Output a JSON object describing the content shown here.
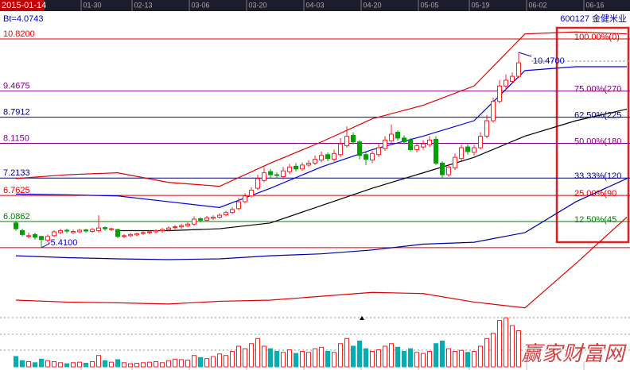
{
  "chart_data": {
    "type": "candlestick",
    "indicator_label": "Bt=4.0743",
    "stock": "600127 金健米业",
    "watermark": "赢家财富网",
    "categories": [
      "2015-01-14",
      null,
      null,
      null,
      null,
      null,
      null,
      null,
      null,
      null,
      null,
      null,
      "01-30",
      null,
      null,
      null,
      null,
      null,
      null,
      null,
      "02-13",
      null,
      null,
      null,
      null,
      null,
      null,
      null,
      null,
      "03-06",
      null,
      null,
      null,
      null,
      null,
      null,
      null,
      null,
      "03-20",
      null,
      null,
      null,
      null,
      null,
      null,
      null,
      null,
      "04-03",
      null,
      null,
      null,
      null,
      null,
      null,
      null,
      null,
      "04-20",
      null,
      null,
      null,
      null,
      null,
      null,
      null,
      null,
      "05-05",
      null,
      null,
      null,
      null,
      null,
      null,
      null,
      "05-19",
      null,
      null,
      null,
      null,
      null,
      null,
      null,
      null,
      "06-02",
      null,
      null,
      null,
      null,
      null,
      null,
      null,
      null,
      "06-16",
      null,
      null,
      null,
      null,
      null
    ],
    "open": [
      6.05,
      5.85,
      5.7,
      5.75,
      5.7,
      5.6,
      5.72,
      5.8,
      5.86,
      5.8,
      5.82,
      5.87,
      5.83,
      5.85,
      5.93,
      5.88,
      5.88,
      5.7,
      5.72,
      5.74,
      5.78,
      5.8,
      5.82,
      5.85,
      5.88,
      5.93,
      5.95,
      5.98,
      6.02,
      6.16,
      6.12,
      6.17,
      6.2,
      6.26,
      6.32,
      6.42,
      6.6,
      6.75,
      6.95,
      7.15,
      7.38,
      7.3,
      7.25,
      7.38,
      7.52,
      7.45,
      7.55,
      7.6,
      7.68,
      7.82,
      7.7,
      7.82,
      8.05,
      8.32,
      8.15,
      7.82,
      7.68,
      7.82,
      7.98,
      8.18,
      8.4,
      8.25,
      8.2,
      7.95,
      8.02,
      8.08,
      8.22,
      7.6,
      7.3,
      7.48,
      7.72,
      8.02,
      7.88,
      8.0,
      8.3,
      8.7,
      9.2,
      9.6,
      9.72,
      9.85,
      null,
      null,
      null,
      null,
      null,
      null,
      null,
      null,
      null,
      null,
      null,
      null,
      null,
      null,
      null,
      null,
      null
    ],
    "high": [
      6.1,
      5.9,
      5.8,
      5.8,
      5.72,
      5.75,
      5.86,
      5.9,
      5.9,
      5.88,
      5.9,
      5.9,
      5.92,
      6.25,
      5.96,
      5.93,
      5.9,
      5.76,
      5.79,
      5.8,
      5.83,
      5.86,
      5.88,
      5.92,
      5.96,
      6.0,
      6.03,
      6.07,
      6.22,
      6.2,
      6.23,
      6.25,
      6.3,
      6.37,
      6.46,
      6.7,
      6.82,
      6.98,
      7.3,
      7.5,
      7.45,
      7.36,
      7.5,
      7.58,
      7.6,
      7.62,
      7.68,
      7.8,
      7.9,
      7.88,
      7.95,
      8.25,
      8.55,
      8.4,
      8.2,
      7.88,
      7.92,
      8.1,
      8.3,
      8.6,
      8.45,
      8.32,
      8.25,
      8.12,
      8.2,
      8.3,
      8.3,
      7.65,
      7.58,
      7.85,
      8.08,
      8.1,
      8.08,
      8.4,
      8.85,
      9.3,
      9.75,
      9.9,
      9.95,
      10.47,
      null,
      null,
      null,
      null,
      null,
      null,
      null,
      null,
      null,
      null,
      null,
      null,
      null,
      null,
      null,
      null,
      null
    ],
    "low": [
      5.85,
      5.7,
      5.65,
      5.62,
      5.41,
      5.55,
      5.68,
      5.76,
      5.78,
      5.76,
      5.78,
      5.8,
      5.79,
      5.8,
      5.85,
      5.84,
      5.66,
      5.66,
      5.68,
      5.7,
      5.74,
      5.76,
      5.78,
      5.8,
      5.84,
      5.88,
      5.9,
      5.94,
      5.98,
      6.06,
      6.08,
      6.12,
      6.16,
      6.22,
      6.28,
      6.38,
      6.55,
      6.7,
      6.9,
      7.1,
      7.22,
      7.2,
      7.18,
      7.32,
      7.38,
      7.4,
      7.5,
      7.55,
      7.62,
      7.65,
      7.64,
      7.76,
      8.0,
      8.08,
      7.7,
      7.55,
      7.6,
      7.76,
      7.92,
      8.12,
      8.18,
      8.08,
      7.9,
      7.88,
      7.95,
      8.02,
      7.55,
      7.2,
      7.25,
      7.42,
      7.66,
      7.82,
      7.8,
      7.95,
      8.25,
      8.65,
      9.15,
      9.5,
      9.68,
      9.8,
      null,
      null,
      null,
      null,
      null,
      null,
      null,
      null,
      null,
      null,
      null,
      null,
      null,
      null,
      null,
      null,
      null
    ],
    "close": [
      5.9,
      5.75,
      5.72,
      5.68,
      5.62,
      5.7,
      5.82,
      5.85,
      5.84,
      5.83,
      5.86,
      5.84,
      5.88,
      5.92,
      5.9,
      5.9,
      5.7,
      5.72,
      5.75,
      5.77,
      5.8,
      5.82,
      5.85,
      5.88,
      5.92,
      5.95,
      5.98,
      6.02,
      6.15,
      6.12,
      6.18,
      6.2,
      6.25,
      6.32,
      6.4,
      6.6,
      6.75,
      6.9,
      7.2,
      7.35,
      7.3,
      7.28,
      7.4,
      7.5,
      7.45,
      7.55,
      7.6,
      7.7,
      7.8,
      7.72,
      7.85,
      8.1,
      8.3,
      8.15,
      7.8,
      7.7,
      7.85,
      8.0,
      8.2,
      8.35,
      8.25,
      8.15,
      7.95,
      8.05,
      8.1,
      8.2,
      7.6,
      7.3,
      7.5,
      7.75,
      8.0,
      7.9,
      8.0,
      8.3,
      8.7,
      9.2,
      9.6,
      9.75,
      9.85,
      10.2,
      null,
      null,
      null,
      null,
      null,
      null,
      null,
      null,
      null,
      null,
      null,
      null,
      null,
      null,
      null,
      null,
      null
    ],
    "volume": [
      20,
      12,
      10,
      8,
      15,
      12,
      10,
      8,
      6,
      8,
      9,
      7,
      10,
      22,
      12,
      9,
      14,
      8,
      6,
      7,
      8,
      9,
      10,
      8,
      12,
      15,
      14,
      13,
      22,
      18,
      16,
      20,
      25,
      22,
      30,
      40,
      35,
      45,
      55,
      40,
      35,
      30,
      28,
      33,
      26,
      30,
      28,
      35,
      38,
      30,
      28,
      45,
      55,
      40,
      50,
      35,
      30,
      33,
      40,
      45,
      38,
      30,
      35,
      28,
      26,
      30,
      45,
      50,
      35,
      30,
      32,
      28,
      30,
      40,
      55,
      65,
      90,
      95,
      80,
      70,
      null,
      null,
      null,
      null,
      null,
      null,
      null,
      null,
      null,
      null,
      null,
      null,
      null,
      null,
      null,
      null,
      null
    ],
    "ylim": [
      3.7,
      11.54
    ],
    "volume_ylim": [
      0,
      100
    ],
    "up_color": "#ff2020",
    "down_color": "#00a000",
    "levels": [
      {
        "value": 10.82,
        "label": "10.8200",
        "pct": "100.00%(0)",
        "color": "#e00000"
      },
      {
        "value": 9.4675,
        "label": "9.4675",
        "pct": "75.00%(270",
        "color": "#800080"
      },
      {
        "value": 8.7912,
        "label": "8.7912",
        "pct": "62.50%(225",
        "color": "#000080"
      },
      {
        "value": 8.115,
        "label": "8.1150",
        "pct": "50.00%(180",
        "color": "#800080"
      },
      {
        "value": 7.2133,
        "label": "7.2133",
        "pct": "33.33%(120",
        "color": "#000080"
      },
      {
        "value": 6.7625,
        "label": "6.7625",
        "pct": "25.00%(90",
        "color": "#e00000"
      },
      {
        "value": 6.0862,
        "label": "6.0862",
        "pct": "12.50%(45",
        "color": "#008000"
      }
    ],
    "annotations": {
      "high": {
        "value": 10.47,
        "label": "10.4700",
        "color": "#0000c0"
      },
      "low": {
        "value": 5.41,
        "label": "-5.4100",
        "color": "#0000c0"
      }
    },
    "lines": [
      {
        "color": "#e00000",
        "x": [
          0,
          8,
          16,
          24,
          32,
          40,
          48,
          56,
          64,
          72,
          80,
          88,
          96
        ],
        "values": [
          7.2,
          7.3,
          7.35,
          7.1,
          7.0,
          7.6,
          8.15,
          8.75,
          9.1,
          9.6,
          10.95,
          11.0,
          10.95
        ]
      },
      {
        "color": "#e00000",
        "x": [
          0,
          8,
          16,
          24,
          32,
          40,
          48,
          56,
          64,
          72,
          80,
          88,
          96
        ],
        "values": [
          4.05,
          4.0,
          3.98,
          3.95,
          4.02,
          4.05,
          4.15,
          4.25,
          4.22,
          4.0,
          3.85,
          5.0,
          6.2
        ]
      },
      {
        "color": "#0000e0",
        "x": [
          0,
          8,
          16,
          24,
          32,
          40,
          48,
          56,
          64,
          72,
          80,
          88,
          96
        ],
        "values": [
          6.8,
          6.78,
          6.75,
          6.6,
          6.45,
          6.95,
          7.5,
          7.95,
          8.3,
          8.7,
          10.0,
          10.1,
          10.1
        ]
      },
      {
        "color": "#000000",
        "x": [
          0,
          8,
          16,
          24,
          32,
          40,
          48,
          56,
          64,
          72,
          80,
          88,
          96
        ],
        "values": [
          null,
          null,
          5.85,
          5.85,
          5.9,
          6.05,
          6.5,
          6.95,
          7.35,
          7.75,
          8.3,
          8.7,
          9.0
        ]
      },
      {
        "color": "#0000a0",
        "x": [
          0,
          8,
          16,
          24,
          32,
          40,
          48,
          56,
          64,
          72,
          80,
          88,
          96
        ],
        "values": [
          5.2,
          5.15,
          5.12,
          5.1,
          5.12,
          5.2,
          5.25,
          5.35,
          5.5,
          5.55,
          5.8,
          6.6,
          7.2
        ]
      }
    ]
  }
}
